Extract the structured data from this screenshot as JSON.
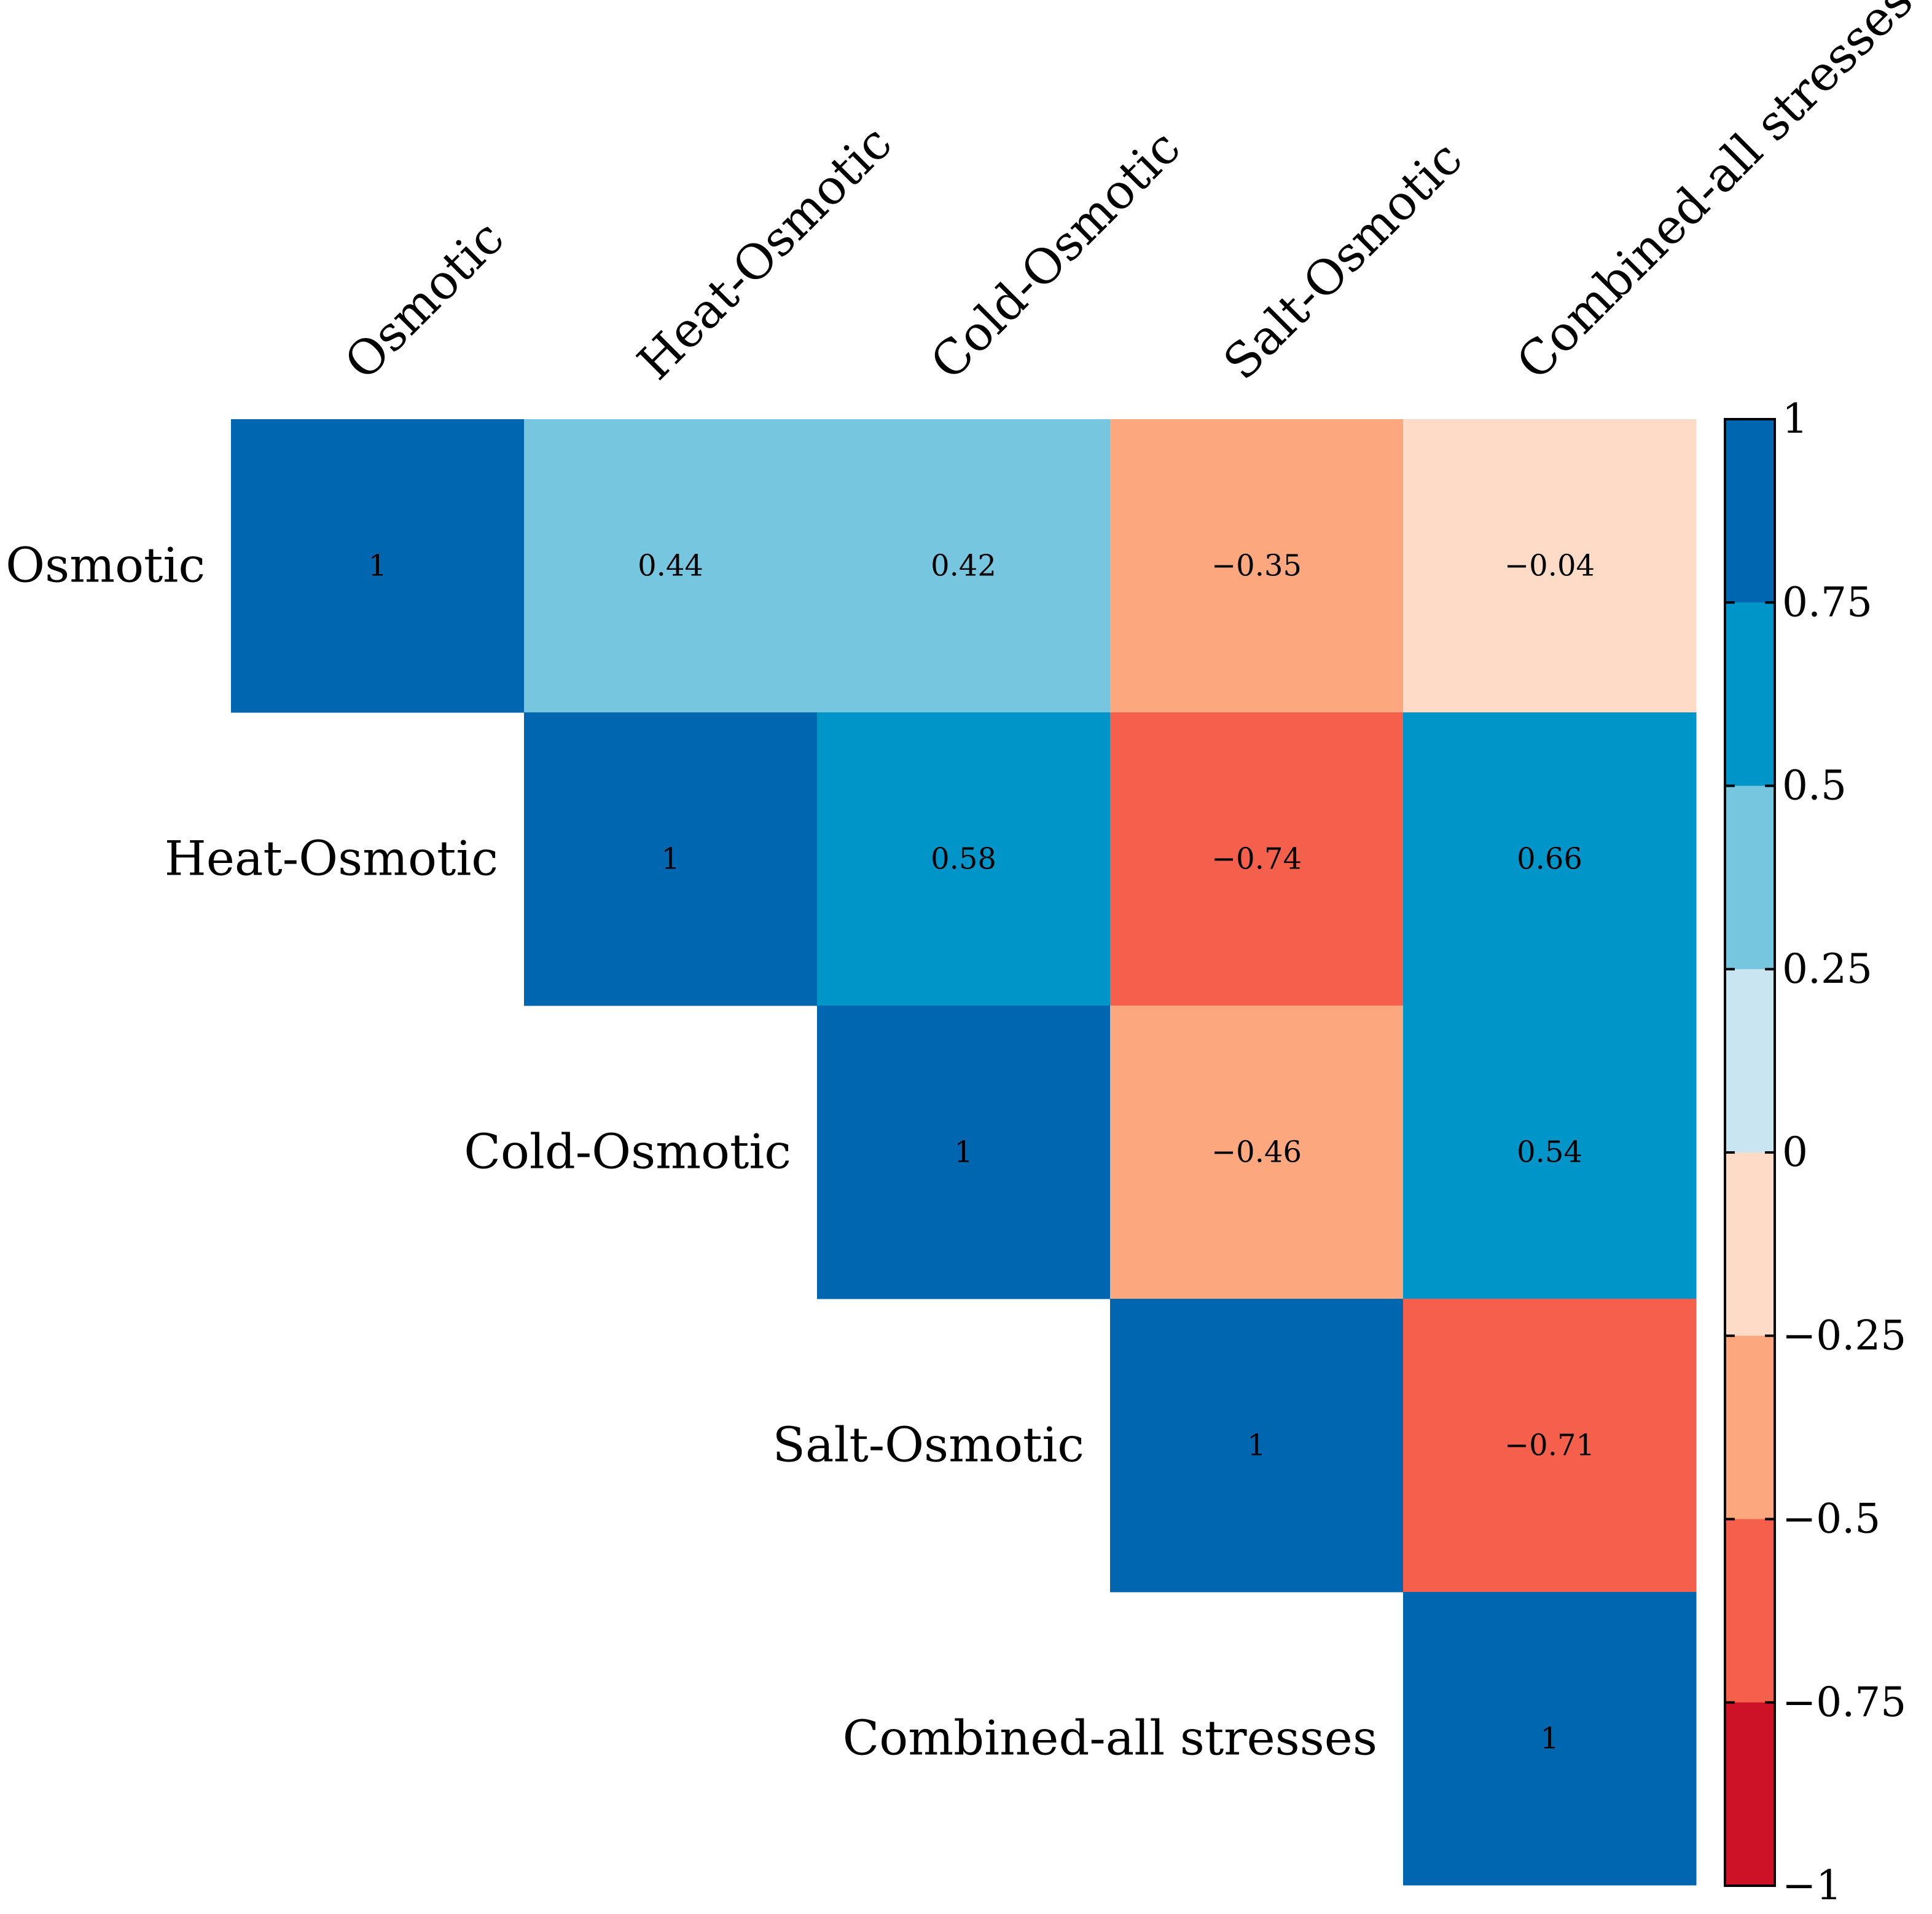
{
  "chart_data": {
    "type": "heatmap",
    "subtype": "upper-triangular correlation matrix",
    "variables": [
      "Osmotic",
      "Heat-Osmotic",
      "Cold-Osmotic",
      "Salt-Osmotic",
      "Combined-all stresses"
    ],
    "matrix": [
      [
        1,
        0.44,
        0.42,
        -0.35,
        -0.04
      ],
      [
        null,
        1,
        0.58,
        -0.74,
        0.66
      ],
      [
        null,
        null,
        1,
        -0.46,
        0.54
      ],
      [
        null,
        null,
        null,
        1,
        -0.71
      ],
      [
        null,
        null,
        null,
        null,
        1
      ]
    ],
    "cell_labels": [
      [
        "1",
        "0.44",
        "0.42",
        "−0.35",
        "−0.04"
      ],
      [
        null,
        "1",
        "0.58",
        "−0.74",
        "0.66"
      ],
      [
        null,
        null,
        "1",
        "−0.46",
        "0.54"
      ],
      [
        null,
        null,
        null,
        "1",
        "−0.71"
      ],
      [
        null,
        null,
        null,
        null,
        "1"
      ]
    ],
    "colorbar": {
      "range": [
        -1,
        1
      ],
      "ticks": [
        1,
        0.75,
        0.5,
        0.25,
        0,
        -0.25,
        -0.5,
        -0.75,
        -1
      ],
      "tick_labels": [
        "1",
        "0.75",
        "0.5",
        "0.25",
        "0",
        "−0.25",
        "−0.5",
        "−0.75",
        "−1"
      ],
      "bins": [
        {
          "from": 0.75,
          "to": 1,
          "color": "#0066B0"
        },
        {
          "from": 0.5,
          "to": 0.75,
          "color": "#0095C8"
        },
        {
          "from": 0.25,
          "to": 0.5,
          "color": "#77C6DF"
        },
        {
          "from": 0,
          "to": 0.25,
          "color": "#C9E5F1"
        },
        {
          "from": -0.25,
          "to": 0,
          "color": "#FEDBC7"
        },
        {
          "from": -0.5,
          "to": -0.25,
          "color": "#FDA77E"
        },
        {
          "from": -0.75,
          "to": -0.5,
          "color": "#F4604B"
        },
        {
          "from": -1,
          "to": -0.75,
          "color": "#CD1228"
        }
      ]
    },
    "title": "",
    "xlabel": "",
    "ylabel": ""
  }
}
